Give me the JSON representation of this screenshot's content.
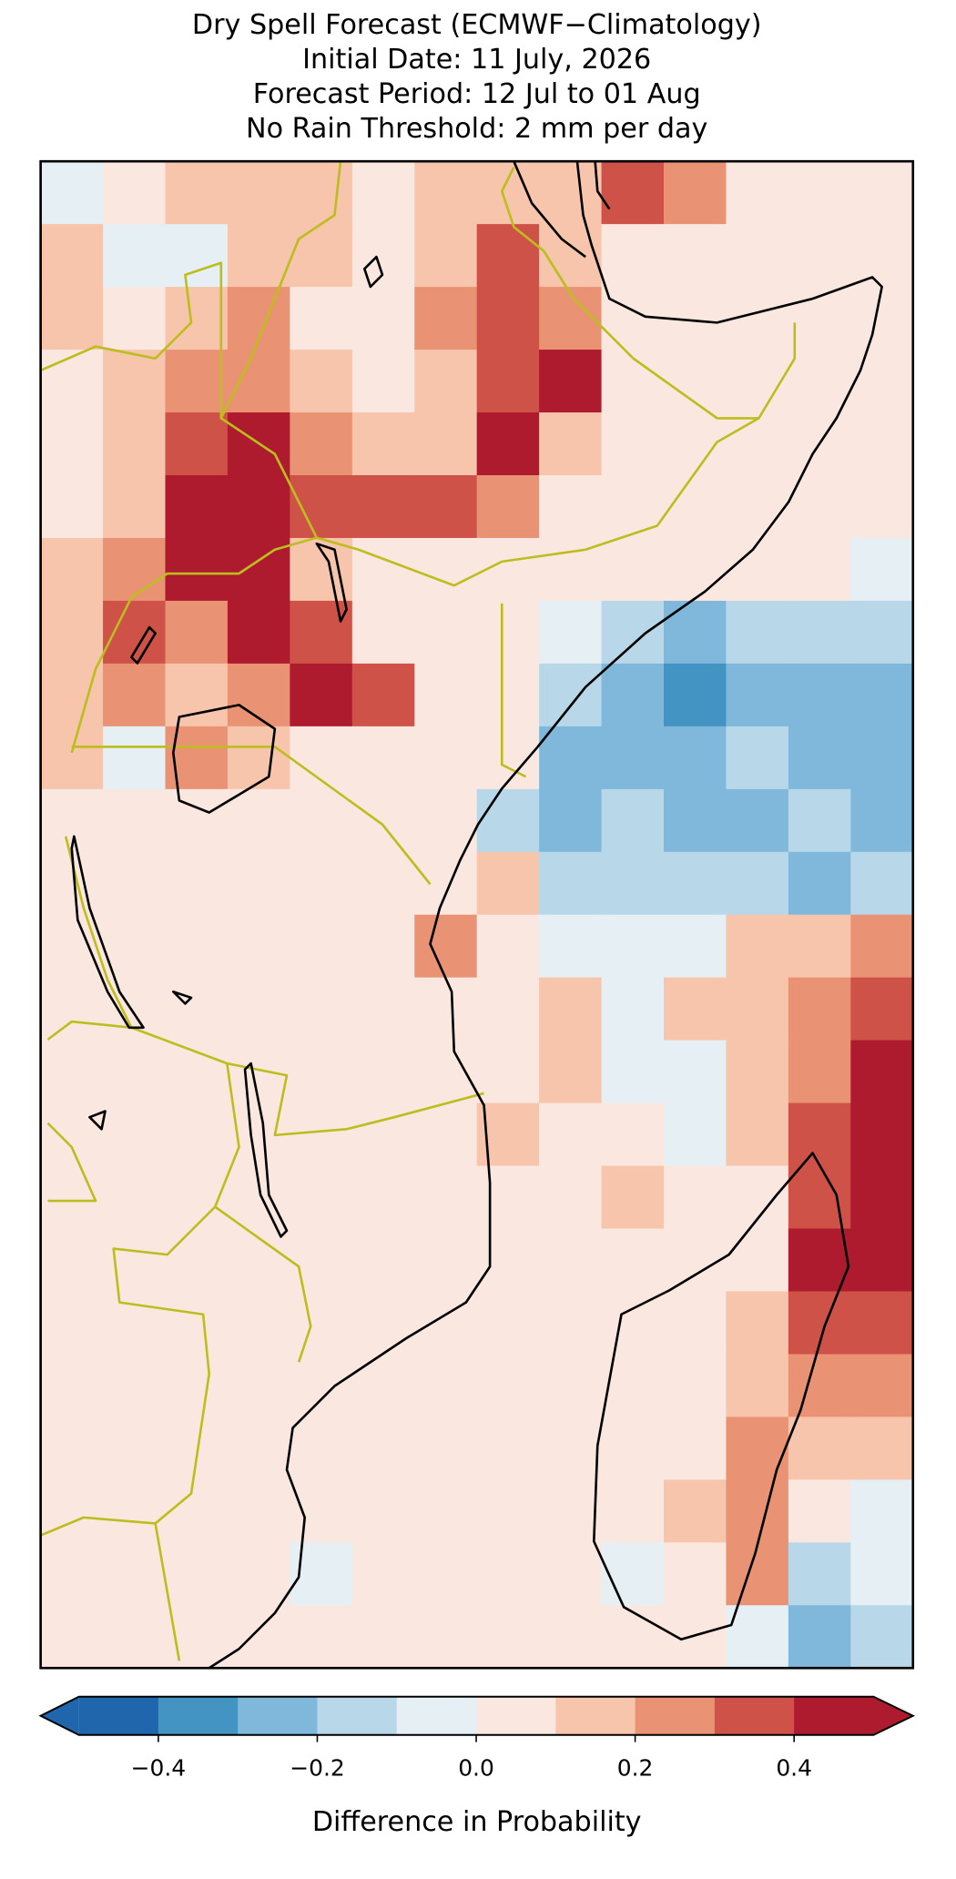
{
  "chart_data": {
    "type": "map",
    "title": [
      "Dry Spell Forecast (ECMWF−Climatology)",
      "Initial Date: 11 July, 2026",
      "Forecast Period: 12 Jul to 01 Aug",
      "No Rain Threshold: 2 mm per day"
    ],
    "grid": [
      [
        -0.05,
        0.05,
        0.15,
        0.15,
        0.15,
        0.05,
        0.15,
        0.15,
        0.15,
        0.35,
        0.25,
        0.05,
        0.05,
        0.05
      ],
      [
        0.15,
        -0.05,
        -0.05,
        0.15,
        0.15,
        0.05,
        0.15,
        0.35,
        0.15,
        0.05,
        0.05,
        0.05,
        0.05,
        0.05
      ],
      [
        0.15,
        0.05,
        0.15,
        0.25,
        0.05,
        0.05,
        0.25,
        0.35,
        0.25,
        0.05,
        0.05,
        0.05,
        0.05,
        0.05
      ],
      [
        0.05,
        0.15,
        0.25,
        0.25,
        0.15,
        0.05,
        0.15,
        0.35,
        0.45,
        0.05,
        0.05,
        0.05,
        0.05,
        0.05
      ],
      [
        0.05,
        0.15,
        0.35,
        0.45,
        0.25,
        0.15,
        0.15,
        0.45,
        0.15,
        0.05,
        0.05,
        0.05,
        0.05,
        0.05
      ],
      [
        0.05,
        0.15,
        0.45,
        0.45,
        0.35,
        0.35,
        0.35,
        0.25,
        0.05,
        0.05,
        0.05,
        0.05,
        0.05,
        0.05
      ],
      [
        0.15,
        0.25,
        0.45,
        0.45,
        0.15,
        0.05,
        0.05,
        0.05,
        0.05,
        0.05,
        0.05,
        0.05,
        0.05,
        -0.05
      ],
      [
        0.15,
        0.35,
        0.25,
        0.45,
        0.35,
        0.05,
        0.05,
        0.05,
        -0.05,
        -0.15,
        -0.25,
        -0.15,
        -0.15,
        -0.15
      ],
      [
        0.15,
        0.25,
        0.15,
        0.25,
        0.45,
        0.35,
        0.05,
        0.05,
        -0.15,
        -0.25,
        -0.35,
        -0.25,
        -0.25,
        -0.25
      ],
      [
        0.15,
        -0.05,
        0.25,
        0.15,
        0.05,
        0.05,
        0.05,
        0.05,
        -0.25,
        -0.25,
        -0.25,
        -0.15,
        -0.25,
        -0.25
      ],
      [
        0.05,
        0.05,
        0.05,
        0.05,
        0.05,
        0.05,
        0.05,
        -0.15,
        -0.25,
        -0.15,
        -0.25,
        -0.25,
        -0.15,
        -0.25
      ],
      [
        0.05,
        0.05,
        0.05,
        0.05,
        0.05,
        0.05,
        0.05,
        0.15,
        -0.15,
        -0.15,
        -0.15,
        -0.15,
        -0.25,
        -0.15
      ],
      [
        0.05,
        0.05,
        0.05,
        0.05,
        0.05,
        0.05,
        0.25,
        0.05,
        -0.05,
        -0.05,
        -0.05,
        0.15,
        0.15,
        0.25
      ],
      [
        0.05,
        0.05,
        0.05,
        0.05,
        0.05,
        0.05,
        0.05,
        0.05,
        0.15,
        -0.05,
        0.15,
        0.15,
        0.25,
        0.35
      ],
      [
        0.05,
        0.05,
        0.05,
        0.05,
        0.05,
        0.05,
        0.05,
        0.05,
        0.15,
        -0.05,
        -0.05,
        0.15,
        0.25,
        0.45
      ],
      [
        0.05,
        0.05,
        0.05,
        0.05,
        0.05,
        0.05,
        0.05,
        0.15,
        0.05,
        0.05,
        -0.05,
        0.15,
        0.35,
        0.45
      ],
      [
        0.05,
        0.05,
        0.05,
        0.05,
        0.05,
        0.05,
        0.05,
        0.05,
        0.05,
        0.15,
        0.05,
        0.05,
        0.35,
        0.45
      ],
      [
        0.05,
        0.05,
        0.05,
        0.05,
        0.05,
        0.05,
        0.05,
        0.05,
        0.05,
        0.05,
        0.05,
        0.05,
        0.45,
        0.45
      ],
      [
        0.05,
        0.05,
        0.05,
        0.05,
        0.05,
        0.05,
        0.05,
        0.05,
        0.05,
        0.05,
        0.05,
        0.15,
        0.35,
        0.35
      ],
      [
        0.05,
        0.05,
        0.05,
        0.05,
        0.05,
        0.05,
        0.05,
        0.05,
        0.05,
        0.05,
        0.05,
        0.15,
        0.25,
        0.25
      ],
      [
        0.05,
        0.05,
        0.05,
        0.05,
        0.05,
        0.05,
        0.05,
        0.05,
        0.05,
        0.05,
        0.05,
        0.25,
        0.15,
        0.15
      ],
      [
        0.05,
        0.05,
        0.05,
        0.05,
        0.05,
        0.05,
        0.05,
        0.05,
        0.05,
        0.05,
        0.15,
        0.25,
        0.05,
        -0.05
      ],
      [
        0.05,
        0.05,
        0.05,
        0.05,
        -0.05,
        0.05,
        0.05,
        0.05,
        0.05,
        -0.05,
        0.05,
        0.25,
        -0.15,
        -0.05
      ],
      [
        0.05,
        0.05,
        0.05,
        0.05,
        0.05,
        0.05,
        0.05,
        0.05,
        0.05,
        0.05,
        0.05,
        -0.05,
        -0.25,
        -0.15
      ]
    ],
    "colorbar": {
      "label": "Difference in Probability",
      "levels": [
        -0.5,
        -0.4,
        -0.3,
        -0.2,
        -0.1,
        0,
        0.1,
        0.2,
        0.3,
        0.4,
        0.5
      ],
      "colors": [
        "#2066ac",
        "#4393c3",
        "#7fb8da",
        "#b8d8ea",
        "#e5eff4",
        "#fae8e0",
        "#f7c4ac",
        "#ea9274",
        "#cf5248",
        "#ae1a2e"
      ],
      "extend": "both",
      "ticks": [
        {
          "value": -0.4,
          "label": "−0.4"
        },
        {
          "value": -0.2,
          "label": "−0.2"
        },
        {
          "value": 0,
          "label": "0.0"
        },
        0.2,
        0.4
      ]
    }
  }
}
